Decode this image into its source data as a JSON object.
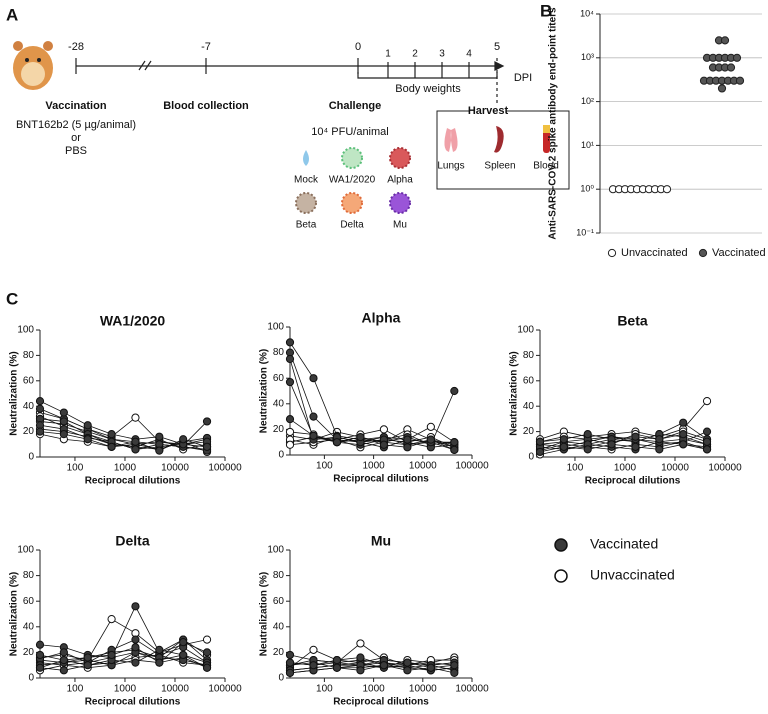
{
  "panel_a": {
    "label": "A",
    "ticks": [
      "-28",
      "-7",
      "0",
      "1",
      "2",
      "3",
      "4",
      "5"
    ],
    "unit": "DPI",
    "body_weights": "Body weights",
    "vaccination": {
      "title": "Vaccination",
      "lines": [
        "BNT162b2 (5 µg/animal)",
        "or",
        "PBS"
      ]
    },
    "blood_collection": "Blood collection",
    "challenge": {
      "title": "Challenge",
      "dose": "10⁴ PFU/animal",
      "viruses": [
        "Mock",
        "WA1/2020",
        "Alpha",
        "Beta",
        "Delta",
        "Mu"
      ]
    },
    "harvest": {
      "title": "Harvest",
      "organs": [
        "Lungs",
        "Spleen",
        "Blood"
      ]
    }
  },
  "panel_b_label": "B",
  "panel_c_label": "C",
  "legend": [
    {
      "name": "Vaccinated",
      "color": "#3a3a3a"
    },
    {
      "name": "Unvaccinated",
      "color": "#ffffff"
    }
  ],
  "chart_data": [
    {
      "type": "scatter",
      "ylabel": "Anti-SARS-COV-2 spike antibody end-point titers",
      "log_y": true,
      "grid": true,
      "ylim": [
        0.1,
        10000
      ],
      "yticks": [
        {
          "value": 0.1,
          "label": "10⁻¹"
        },
        {
          "value": 1,
          "label": "10⁰"
        },
        {
          "value": 10,
          "label": "10¹"
        },
        {
          "value": 100,
          "label": "10²"
        },
        {
          "value": 1000,
          "label": "10³"
        },
        {
          "value": 10000,
          "label": "10⁴"
        }
      ],
      "series": [
        {
          "name": "Unvaccinated",
          "color": "#ffffff",
          "values": [
            1,
            1,
            1,
            1,
            1,
            1,
            1,
            1,
            1,
            1
          ]
        },
        {
          "name": "Vaccinated",
          "color": "#555555",
          "values": [
            2500,
            2500,
            1000,
            1000,
            1000,
            1000,
            1000,
            1000,
            600,
            600,
            600,
            600,
            300,
            300,
            300,
            300,
            300,
            300,
            300,
            200
          ]
        }
      ]
    },
    {
      "type": "line",
      "title": "WA1/2020",
      "xlabel": "Reciprocal dilutions",
      "ylabel": "Neutralization (%)",
      "log_x": true,
      "x": [
        20,
        60,
        180,
        540,
        1620,
        4860,
        14580,
        43740
      ],
      "xlim": [
        20,
        100000
      ],
      "xticks": [
        100,
        1000,
        10000,
        100000
      ],
      "ylim": [
        0,
        100
      ],
      "yticks": [
        0,
        20,
        40,
        60,
        80,
        100
      ],
      "unvaccinated": [
        [
          28,
          26,
          20,
          14,
          12,
          10,
          8,
          6
        ],
        [
          35,
          30,
          22,
          16,
          31,
          12,
          10,
          14
        ],
        [
          22,
          20,
          16,
          10,
          8,
          14,
          6,
          10
        ],
        [
          18,
          14,
          12,
          8,
          10,
          6,
          12,
          4
        ],
        [
          32,
          24,
          18,
          12,
          6,
          8,
          10,
          8
        ]
      ],
      "vaccinated": [
        [
          38,
          30,
          22,
          14,
          10,
          12,
          9,
          28
        ],
        [
          30,
          28,
          18,
          10,
          8,
          6,
          12,
          15
        ],
        [
          25,
          22,
          15,
          12,
          6,
          10,
          8,
          5
        ],
        [
          44,
          35,
          25,
          18,
          14,
          16,
          10,
          12
        ],
        [
          20,
          18,
          14,
          8,
          12,
          5,
          14,
          8
        ]
      ]
    },
    {
      "type": "line",
      "title": "Alpha",
      "xlabel": "Reciprocal dilutions",
      "ylabel": "Neutralization (%)",
      "log_x": true,
      "x": [
        20,
        60,
        180,
        540,
        1620,
        4860,
        14580,
        43740
      ],
      "xlim": [
        20,
        100000
      ],
      "xticks": [
        100,
        1000,
        10000,
        100000
      ],
      "ylim": [
        0,
        100
      ],
      "yticks": [
        0,
        20,
        40,
        60,
        80,
        100
      ],
      "unvaccinated": [
        [
          15,
          12,
          18,
          14,
          10,
          20,
          12,
          8
        ],
        [
          10,
          14,
          12,
          16,
          20,
          10,
          14,
          6
        ],
        [
          12,
          8,
          14,
          10,
          12,
          16,
          8,
          10
        ],
        [
          18,
          16,
          10,
          12,
          14,
          12,
          22,
          10
        ],
        [
          8,
          10,
          12,
          6,
          10,
          8,
          10,
          4
        ]
      ],
      "vaccinated": [
        [
          88,
          60,
          15,
          12,
          10,
          14,
          8,
          50
        ],
        [
          80,
          30,
          12,
          10,
          14,
          8,
          12,
          6
        ],
        [
          57,
          14,
          10,
          8,
          12,
          10,
          6,
          8
        ],
        [
          75,
          12,
          14,
          10,
          6,
          12,
          10,
          10
        ],
        [
          28,
          15,
          10,
          14,
          8,
          6,
          12,
          4
        ]
      ]
    },
    {
      "type": "line",
      "title": "Beta",
      "xlabel": "Reciprocal dilutions",
      "ylabel": "Neutralization (%)",
      "log_x": true,
      "x": [
        20,
        60,
        180,
        540,
        1620,
        4860,
        14580,
        43740
      ],
      "xlim": [
        20,
        100000
      ],
      "xticks": [
        100,
        1000,
        10000,
        100000
      ],
      "ylim": [
        0,
        100
      ],
      "yticks": [
        0,
        20,
        40,
        60,
        80,
        100
      ],
      "unvaccinated": [
        [
          14,
          20,
          16,
          18,
          20,
          16,
          22,
          44
        ],
        [
          6,
          12,
          10,
          14,
          12,
          18,
          16,
          10
        ],
        [
          10,
          8,
          12,
          16,
          14,
          12,
          10,
          8
        ],
        [
          12,
          16,
          14,
          10,
          18,
          14,
          20,
          14
        ],
        [
          2,
          6,
          8,
          6,
          10,
          8,
          12,
          6
        ]
      ],
      "vaccinated": [
        [
          10,
          12,
          14,
          16,
          12,
          18,
          27,
          14
        ],
        [
          5,
          10,
          8,
          12,
          14,
          10,
          12,
          20
        ],
        [
          8,
          6,
          10,
          8,
          6,
          12,
          14,
          10
        ],
        [
          12,
          14,
          18,
          14,
          16,
          14,
          18,
          12
        ],
        [
          4,
          8,
          6,
          10,
          8,
          6,
          10,
          6
        ]
      ]
    },
    {
      "type": "line",
      "title": "Delta",
      "xlabel": "Reciprocal dilutions",
      "ylabel": "Neutralization (%)",
      "log_x": true,
      "x": [
        20,
        60,
        180,
        540,
        1620,
        4860,
        14580,
        43740
      ],
      "xlim": [
        20,
        100000
      ],
      "xticks": [
        100,
        1000,
        10000,
        100000
      ],
      "ylim": [
        0,
        100
      ],
      "yticks": [
        0,
        20,
        40,
        60,
        80,
        100
      ],
      "unvaccinated": [
        [
          16,
          18,
          14,
          46,
          35,
          20,
          26,
          30
        ],
        [
          12,
          10,
          12,
          16,
          20,
          14,
          18,
          12
        ],
        [
          8,
          14,
          10,
          12,
          16,
          18,
          12,
          10
        ],
        [
          14,
          12,
          16,
          20,
          22,
          16,
          30,
          18
        ],
        [
          6,
          10,
          8,
          10,
          14,
          12,
          16,
          8
        ]
      ],
      "vaccinated": [
        [
          26,
          24,
          18,
          16,
          56,
          20,
          30,
          14
        ],
        [
          15,
          20,
          12,
          22,
          30,
          18,
          24,
          12
        ],
        [
          10,
          12,
          14,
          10,
          20,
          16,
          14,
          10
        ],
        [
          8,
          6,
          10,
          14,
          12,
          22,
          18,
          8
        ],
        [
          18,
          14,
          16,
          18,
          24,
          12,
          28,
          20
        ]
      ]
    },
    {
      "type": "line",
      "title": "Mu",
      "xlabel": "Reciprocal dilutions",
      "ylabel": "Neutralization (%)",
      "log_x": true,
      "x": [
        20,
        60,
        180,
        540,
        1620,
        4860,
        14580,
        43740
      ],
      "xlim": [
        20,
        100000
      ],
      "xticks": [
        100,
        1000,
        10000,
        100000
      ],
      "ylim": [
        0,
        100
      ],
      "yticks": [
        0,
        20,
        40,
        60,
        80,
        100
      ],
      "unvaccinated": [
        [
          8,
          22,
          14,
          12,
          16,
          10,
          12,
          16
        ],
        [
          10,
          14,
          12,
          27,
          14,
          12,
          10,
          12
        ],
        [
          6,
          8,
          10,
          10,
          8,
          14,
          12,
          10
        ],
        [
          12,
          10,
          12,
          14,
          12,
          10,
          14,
          14
        ],
        [
          4,
          6,
          8,
          8,
          10,
          8,
          6,
          8
        ]
      ],
      "vaccinated": [
        [
          10,
          12,
          8,
          10,
          12,
          8,
          10,
          6
        ],
        [
          6,
          8,
          10,
          12,
          8,
          10,
          6,
          8
        ],
        [
          18,
          14,
          12,
          10,
          14,
          12,
          10,
          12
        ],
        [
          4,
          6,
          8,
          6,
          10,
          6,
          8,
          4
        ],
        [
          12,
          10,
          14,
          16,
          10,
          12,
          8,
          10
        ]
      ]
    }
  ]
}
